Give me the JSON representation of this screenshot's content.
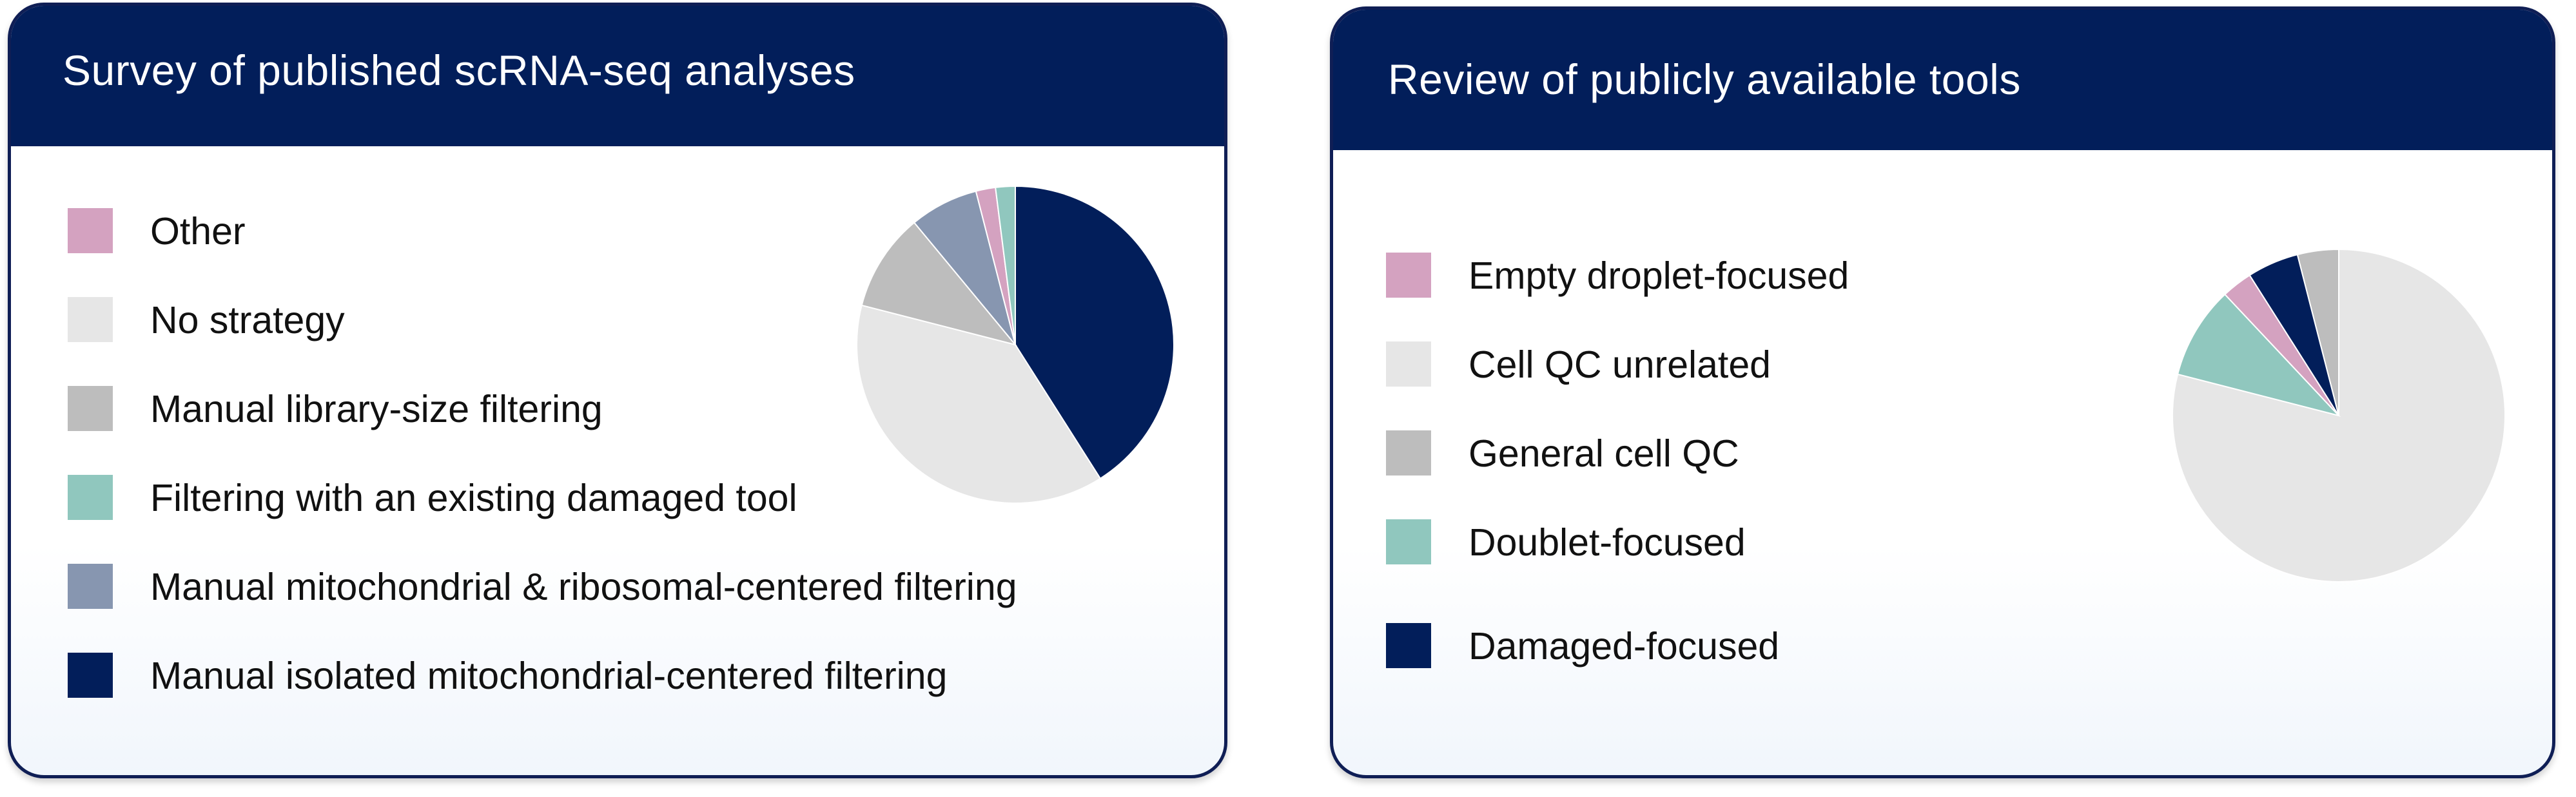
{
  "colors": {
    "other": "#d4a2c0",
    "none": "#e6e6e6",
    "library": "#bdbdbd",
    "tool": "#90c7be",
    "mitoribo": "#8796b0",
    "mito": "#021e5a"
  },
  "panels": [
    {
      "title": "Survey of published scRNA-seq analyses",
      "legend": [
        {
          "label": "Other",
          "color": "#d4a2c0"
        },
        {
          "label": "No strategy",
          "color": "#e6e6e6"
        },
        {
          "label": "Manual library-size filtering",
          "color": "#bdbdbd"
        },
        {
          "label": "Filtering with an existing damaged tool",
          "color": "#90c7be"
        },
        {
          "label": "Manual mitochondrial & ribosomal-centered filtering",
          "color": "#8796b0"
        },
        {
          "label": "Manual isolated mitochondrial-centered filtering",
          "color": "#021e5a"
        }
      ]
    },
    {
      "title": "Review of publicly available tools",
      "legend": [
        {
          "label": "Empty droplet-focused",
          "color": "#d4a2c0"
        },
        {
          "label": "Cell QC unrelated",
          "color": "#e6e6e6"
        },
        {
          "label": "General cell QC",
          "color": "#bdbdbd"
        },
        {
          "label": "Doublet-focused",
          "color": "#90c7be"
        },
        {
          "label": "Damaged-focused",
          "color": "#021e5a"
        }
      ]
    }
  ],
  "chart_data": [
    {
      "type": "pie",
      "title": "Survey of published scRNA-seq analyses",
      "start": "top",
      "direction": "clockwise",
      "categories": [
        "Manual isolated mitochondrial-centered filtering",
        "No strategy",
        "Manual library-size filtering",
        "Manual mitochondrial & ribosomal-centered filtering",
        "Other",
        "Filtering with an existing damaged tool"
      ],
      "values": [
        41,
        38,
        10,
        7,
        2,
        2
      ],
      "colors": [
        "#021e5a",
        "#e6e6e6",
        "#bdbdbd",
        "#8796b0",
        "#d4a2c0",
        "#90c7be"
      ],
      "legend_placement": "left"
    },
    {
      "type": "pie",
      "title": "Review of publicly available tools",
      "start": "top",
      "direction": "clockwise",
      "categories": [
        "Cell QC unrelated",
        "Doublet-focused",
        "Empty droplet-focused",
        "Damaged-focused",
        "General cell QC"
      ],
      "values": [
        79,
        9,
        3,
        5,
        4
      ],
      "colors": [
        "#e6e6e6",
        "#90c7be",
        "#d4a2c0",
        "#021e5a",
        "#bdbdbd"
      ],
      "legend_placement": "left"
    }
  ]
}
